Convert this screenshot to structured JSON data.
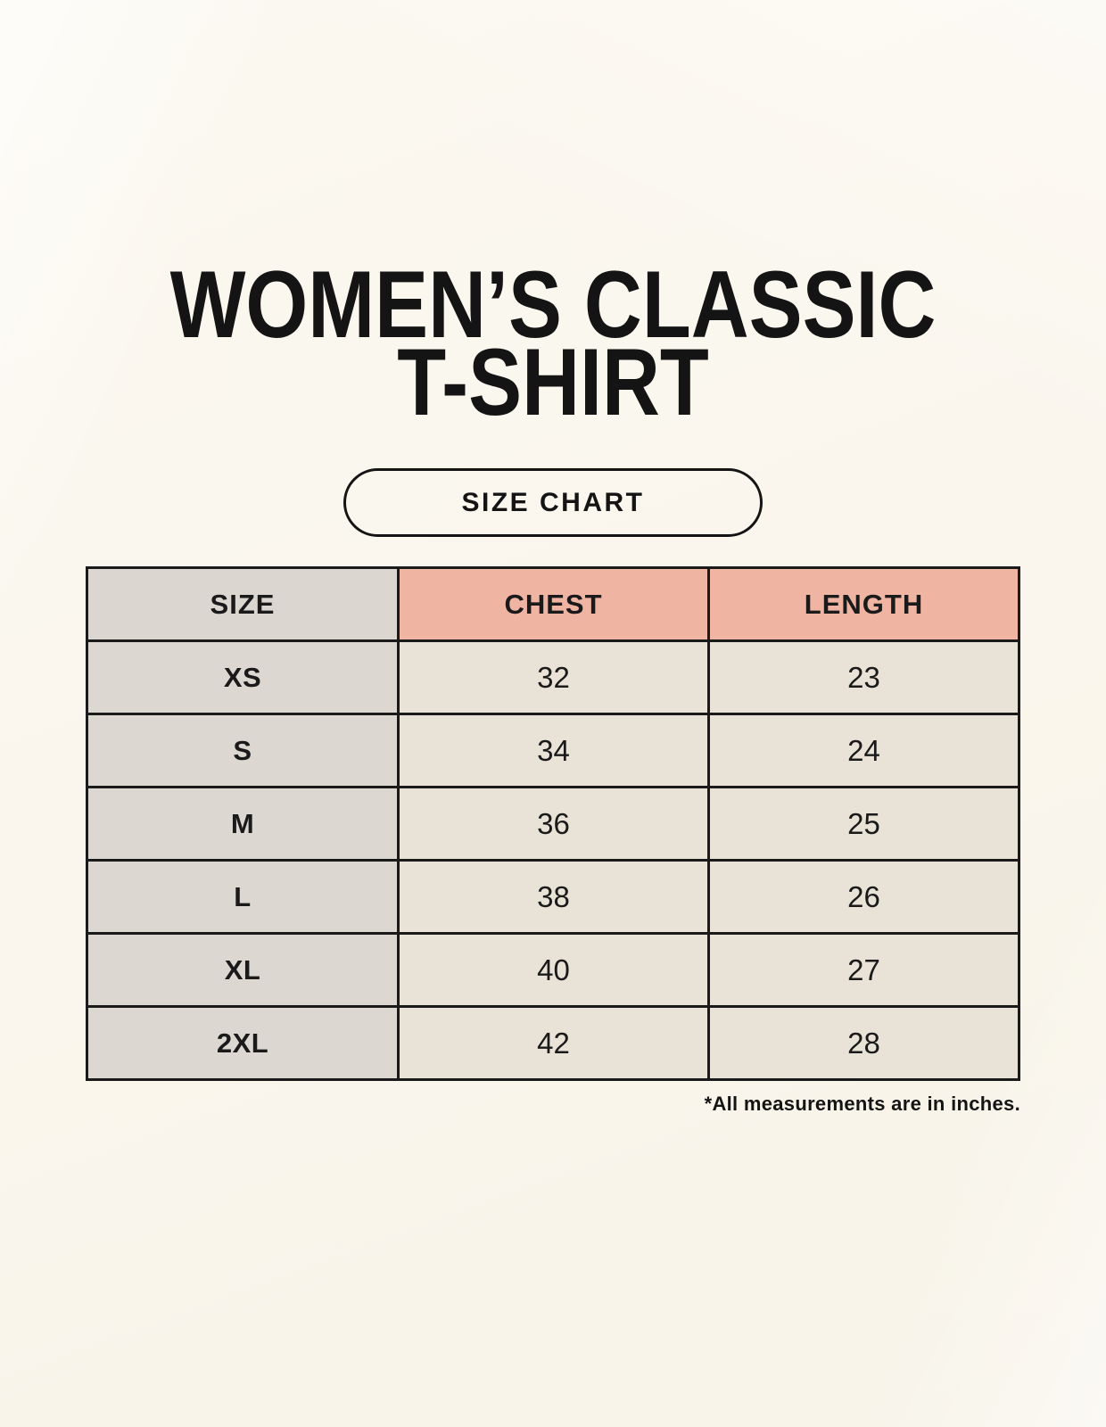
{
  "title": {
    "line1": "WOMEN’S CLASSIC",
    "line2": "T-SHIRT"
  },
  "badge_label": "SIZE CHART",
  "footnote": "*All measurements are in inches.",
  "colors": {
    "bg": "#faf6ed",
    "border": "#1a1a1a",
    "ink": "#1a1a1a",
    "size_gray": "#dcd6d1",
    "header_pink": "#f0b4a3",
    "cell_beige": "#e9e2d6"
  },
  "chart_data": {
    "type": "table",
    "title": "WOMEN’S CLASSIC T-SHIRT",
    "subtitle": "SIZE CHART",
    "units": "inches",
    "columns": [
      "SIZE",
      "CHEST",
      "LENGTH"
    ],
    "rows": [
      [
        "XS",
        "32",
        "23"
      ],
      [
        "S",
        "34",
        "24"
      ],
      [
        "M",
        "36",
        "25"
      ],
      [
        "L",
        "38",
        "26"
      ],
      [
        "XL",
        "40",
        "27"
      ],
      [
        "2XL",
        "42",
        "28"
      ]
    ]
  }
}
